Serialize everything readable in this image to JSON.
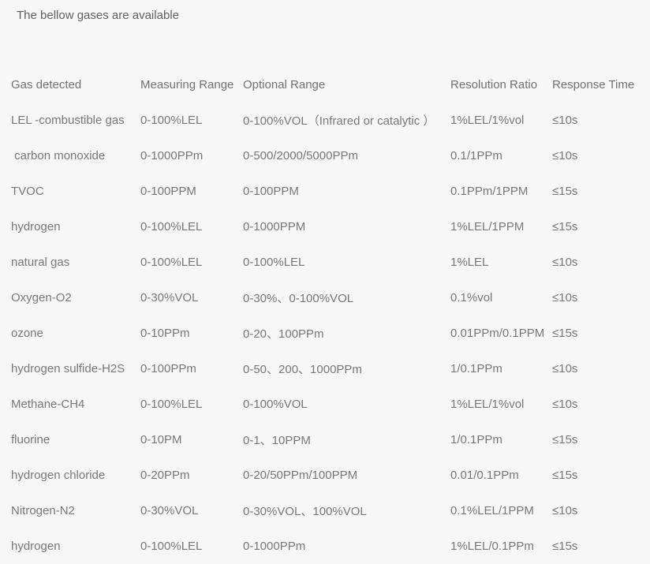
{
  "page": {
    "title": "The bellow gases are available",
    "background_color": "#f7f7f7",
    "text_color": "#76787b"
  },
  "table": {
    "headers": [
      "Gas detected",
      "Measuring Range",
      "Optional Range",
      "Resolution Ratio",
      "Response Time"
    ],
    "rows": [
      [
        "LEL -combustible gas",
        "0-100%LEL",
        "0-100%VOL（Infrared or catalytic ）",
        "1%LEL/1%vol",
        "≤10s"
      ],
      [
        " carbon monoxide",
        "0-1000PPm",
        "0-500/2000/5000PPm",
        "0.1/1PPm",
        "≤10s"
      ],
      [
        "TVOC",
        "0-100PPM",
        "0-100PPM",
        "0.1PPm/1PPM",
        "≤15s"
      ],
      [
        "hydrogen",
        "0-100%LEL",
        "0-1000PPM",
        "1%LEL/1PPM",
        "≤15s"
      ],
      [
        "natural gas",
        "0-100%LEL",
        "0-100%LEL",
        "1%LEL",
        "≤10s"
      ],
      [
        "Oxygen-O2",
        "0-30%VOL",
        "0-30%、0-100%VOL",
        "0.1%vol",
        "≤10s"
      ],
      [
        "ozone",
        "0-10PPm",
        "0-20、100PPm",
        "0.01PPm/0.1PPM",
        "≤15s"
      ],
      [
        "hydrogen sulfide-H2S",
        "0-100PPm",
        "0-50、200、1000PPm",
        "1/0.1PPm",
        "≤10s"
      ],
      [
        "Methane-CH4",
        "0-100%LEL",
        "0-100%VOL",
        "1%LEL/1%vol",
        "≤10s"
      ],
      [
        "fluorine",
        "0-10PM",
        "0-1、10PPM",
        "1/0.1PPm",
        "≤15s"
      ],
      [
        "hydrogen chloride",
        "0-20PPm",
        "0-20/50PPm/100PPM",
        "0.01/0.1PPm",
        "≤15s"
      ],
      [
        "Nitrogen-N2",
        "0-30%VOL",
        "0-30%VOL、100%VOL",
        "0.1%LEL/1PPM",
        "≤10s"
      ],
      [
        "hydrogen",
        "0-100%LEL",
        "0-1000PPm",
        "1%LEL/0.1PPm",
        "≤15s"
      ]
    ]
  }
}
